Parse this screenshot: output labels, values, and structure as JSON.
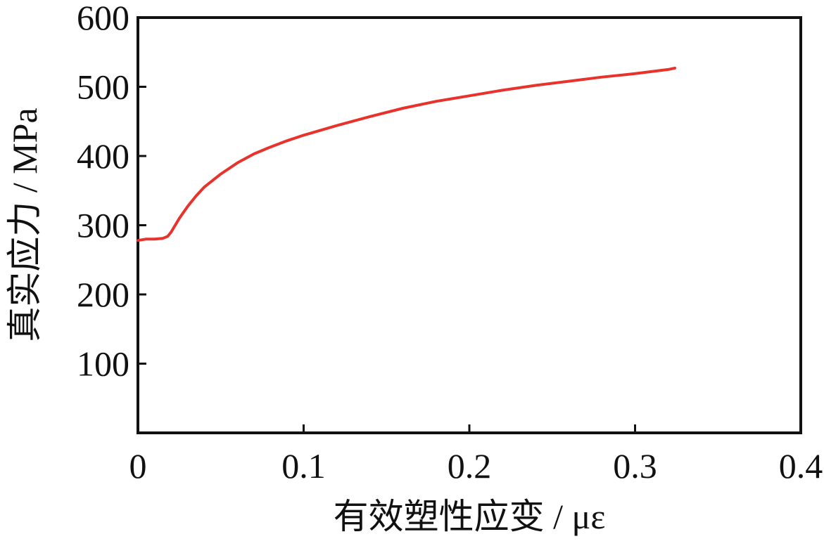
{
  "chart_data": {
    "type": "line",
    "title": "",
    "xlabel": "有效塑性应变 / με",
    "ylabel": "真实应力 / MPa",
    "xlim": [
      0,
      0.4
    ],
    "ylim": [
      0,
      600
    ],
    "x_ticks": [
      0,
      0.1,
      0.2,
      0.3,
      0.4
    ],
    "x_tick_labels": [
      "0",
      "0.1",
      "0.2",
      "0.3",
      "0.4"
    ],
    "y_ticks": [
      100,
      200,
      300,
      400,
      500,
      600
    ],
    "y_tick_labels": [
      "100",
      "200",
      "300",
      "400",
      "500",
      "600"
    ],
    "grid": false,
    "legend": "none",
    "series": [
      {
        "color": "#e8322c",
        "x": [
          0.0,
          0.005,
          0.01,
          0.015,
          0.018,
          0.02,
          0.025,
          0.03,
          0.035,
          0.04,
          0.05,
          0.06,
          0.07,
          0.08,
          0.09,
          0.1,
          0.12,
          0.14,
          0.16,
          0.18,
          0.2,
          0.22,
          0.24,
          0.26,
          0.28,
          0.3,
          0.32,
          0.324
        ],
        "y": [
          278,
          280,
          280,
          281,
          284,
          290,
          310,
          327,
          342,
          355,
          374,
          390,
          403,
          413,
          422,
          430,
          444,
          457,
          469,
          479,
          487,
          495,
          502,
          508,
          514,
          519,
          525,
          527
        ]
      }
    ]
  }
}
